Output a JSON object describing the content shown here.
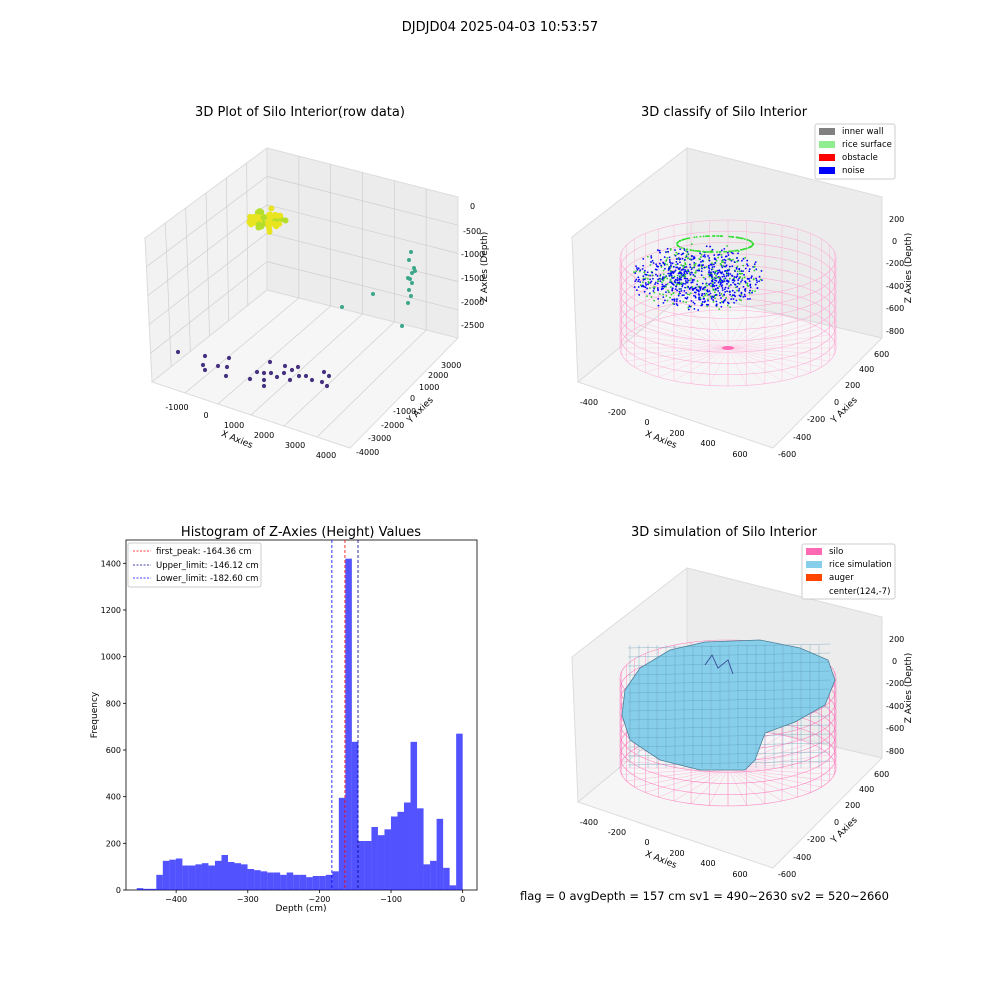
{
  "figure": {
    "suptitle": "DJDJD04 2025-04-03 10:53:57",
    "footer": "flag = 0     avgDepth = 157 cm  sv1 = 490~2630  sv2 = 520~2660"
  },
  "panels": {
    "raw": {
      "title": "3D Plot of Silo Interior(row data)",
      "xlabel": "X Axies",
      "ylabel": "Y Axies",
      "zlabel": "Z Axies (Depth)",
      "xticks": [
        "-1000",
        "0",
        "1000",
        "2000",
        "3000",
        "4000"
      ],
      "yticks": [
        "-4000",
        "-3000",
        "-2000",
        "-1000",
        "0",
        "1000",
        "2000",
        "3000"
      ],
      "zticks": [
        "0",
        "-500",
        "-1000",
        "-1500",
        "-2000",
        "-2500"
      ]
    },
    "classify": {
      "title": "3D classify of Silo Interior",
      "xlabel": "X Axies",
      "ylabel": "Y Axies",
      "zlabel": "Z Axies (Depth)",
      "xticks": [
        "-400",
        "-200",
        "0",
        "200",
        "400",
        "600"
      ],
      "yticks": [
        "-600",
        "-400",
        "-200",
        "0",
        "200",
        "400",
        "600"
      ],
      "zticks": [
        "200",
        "0",
        "-200",
        "-400",
        "-600",
        "-800"
      ],
      "legend": [
        {
          "label": "inner wall",
          "color": "#808080"
        },
        {
          "label": "rice surface",
          "color": "#90ee90"
        },
        {
          "label": "obstacle",
          "color": "#ff0000"
        },
        {
          "label": "noise",
          "color": "#0000ff"
        }
      ]
    },
    "simulation": {
      "title": "3D simulation of Silo Interior",
      "xlabel": "X Axies",
      "ylabel": "Y Axies",
      "zlabel": "Z Axies (Depth)",
      "xticks": [
        "-400",
        "-200",
        "0",
        "200",
        "400",
        "600"
      ],
      "yticks": [
        "-600",
        "-400",
        "-200",
        "0",
        "200",
        "400",
        "600"
      ],
      "zticks": [
        "200",
        "0",
        "-200",
        "-400",
        "-600",
        "-800"
      ],
      "legend": [
        {
          "label": "silo",
          "color": "#ff69b4"
        },
        {
          "label": "rice simulation",
          "color": "#87ceeb"
        },
        {
          "label": "auger",
          "color": "#ff4500"
        },
        {
          "label": "center(124,-7)",
          "color": "#ffffff"
        }
      ]
    }
  },
  "chart_data": {
    "type": "bar",
    "title": "Histogram of Z-Axies (Height) Values",
    "xlabel": "Depth (cm)",
    "ylabel": "Frequency",
    "xlim": [
      -470,
      20
    ],
    "ylim": [
      0,
      1500
    ],
    "xticks": [
      -400,
      -300,
      -200,
      -100,
      0
    ],
    "yticks": [
      0,
      200,
      400,
      600,
      800,
      1000,
      1200,
      1400
    ],
    "bar_color": "#0000ff",
    "bin_start": -455,
    "bin_width": 9.1,
    "values": [
      8,
      5,
      5,
      65,
      125,
      130,
      135,
      105,
      105,
      110,
      115,
      105,
      125,
      150,
      120,
      115,
      110,
      90,
      85,
      80,
      75,
      75,
      65,
      75,
      65,
      65,
      55,
      60,
      60,
      65,
      80,
      395,
      1420,
      635,
      210,
      210,
      270,
      235,
      260,
      315,
      335,
      375,
      635,
      350,
      110,
      125,
      305,
      95,
      20,
      670
    ],
    "lines": [
      {
        "label": "first_peak: -164.36 cm",
        "x": -164.36,
        "color": "#ff0000"
      },
      {
        "label": "Upper_limit: -146.12 cm",
        "x": -146.12,
        "color": "#00008b"
      },
      {
        "label": "Lower_limit: -182.60 cm",
        "x": -182.6,
        "color": "#0000ff"
      }
    ]
  }
}
